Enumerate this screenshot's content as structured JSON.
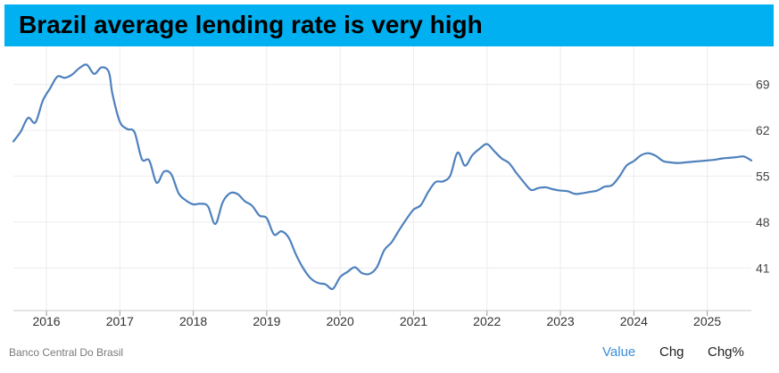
{
  "title": "Brazil average lending rate is very high",
  "source": "Banco Central Do Brasil",
  "toggles": [
    "Value",
    "Chg",
    "Chg%"
  ],
  "active_toggle": "Value",
  "colors": {
    "title_bg": "#00b0f0",
    "line": "#4f81bd",
    "active": "#3b8fd9"
  },
  "chart_data": {
    "type": "line",
    "title": "Brazil average lending rate is very high",
    "xlabel": "",
    "ylabel": "",
    "y_ticks": [
      "69",
      "62",
      "55",
      "48",
      "41"
    ],
    "y_tick_values": [
      69,
      62,
      55,
      48,
      41
    ],
    "x_ticks": [
      "2016",
      "2017",
      "2018",
      "2019",
      "2020",
      "2021",
      "2022",
      "2023",
      "2024",
      "2025"
    ],
    "x_tick_values": [
      2016,
      2017,
      2018,
      2019,
      2020,
      2021,
      2022,
      2023,
      2024,
      2025
    ],
    "xlim": [
      2015.55,
      2025.6
    ],
    "ylim": [
      34.5,
      74.8
    ],
    "grid": true,
    "series": [
      {
        "name": "Average lending rate",
        "x": [
          2015.55,
          2015.65,
          2015.75,
          2015.85,
          2015.95,
          2016.05,
          2016.15,
          2016.25,
          2016.35,
          2016.45,
          2016.55,
          2016.65,
          2016.75,
          2016.85,
          2016.9,
          2017.0,
          2017.1,
          2017.2,
          2017.3,
          2017.4,
          2017.5,
          2017.6,
          2017.7,
          2017.8,
          2017.9,
          2018.0,
          2018.1,
          2018.2,
          2018.3,
          2018.4,
          2018.5,
          2018.6,
          2018.7,
          2018.8,
          2018.9,
          2019.0,
          2019.1,
          2019.2,
          2019.3,
          2019.4,
          2019.5,
          2019.6,
          2019.7,
          2019.8,
          2019.9,
          2020.0,
          2020.1,
          2020.2,
          2020.3,
          2020.4,
          2020.5,
          2020.6,
          2020.7,
          2020.8,
          2020.9,
          2021.0,
          2021.1,
          2021.2,
          2021.3,
          2021.4,
          2021.5,
          2021.6,
          2021.7,
          2021.8,
          2021.9,
          2022.0,
          2022.1,
          2022.2,
          2022.3,
          2022.4,
          2022.5,
          2022.6,
          2022.7,
          2022.8,
          2022.9,
          2023.0,
          2023.1,
          2023.2,
          2023.3,
          2023.4,
          2023.5,
          2023.6,
          2023.7,
          2023.8,
          2023.9,
          2024.0,
          2024.1,
          2024.2,
          2024.3,
          2024.4,
          2024.5,
          2024.6,
          2024.7,
          2024.8,
          2024.9,
          2025.0,
          2025.1,
          2025.2,
          2025.3,
          2025.4,
          2025.5,
          2025.6
        ],
        "y": [
          60.3,
          61.8,
          63.9,
          63.2,
          66.5,
          68.4,
          70.2,
          70.0,
          70.5,
          71.5,
          72.0,
          70.6,
          71.6,
          70.9,
          67.5,
          63.3,
          62.2,
          61.7,
          57.6,
          57.4,
          54.0,
          55.7,
          55.3,
          52.4,
          51.3,
          50.7,
          50.8,
          50.4,
          47.7,
          51.0,
          52.4,
          52.3,
          51.2,
          50.5,
          49.0,
          48.6,
          46.1,
          46.6,
          45.6,
          43.0,
          40.9,
          39.4,
          38.7,
          38.5,
          37.8,
          39.6,
          40.4,
          41.1,
          40.2,
          40.1,
          41.1,
          43.7,
          44.9,
          46.7,
          48.4,
          49.9,
          50.6,
          52.6,
          54.1,
          54.2,
          55.1,
          58.6,
          56.6,
          58.2,
          59.2,
          59.9,
          58.8,
          57.7,
          57.0,
          55.5,
          54.1,
          52.9,
          53.2,
          53.3,
          53.0,
          52.8,
          52.7,
          52.3,
          52.4,
          52.6,
          52.8,
          53.4,
          53.6,
          54.9,
          56.6,
          57.3,
          58.2,
          58.5,
          58.1,
          57.3,
          57.1,
          57.0,
          57.1,
          57.2,
          57.3,
          57.4,
          57.5,
          57.7,
          57.8,
          57.9,
          58.0,
          57.4
        ]
      }
    ]
  }
}
